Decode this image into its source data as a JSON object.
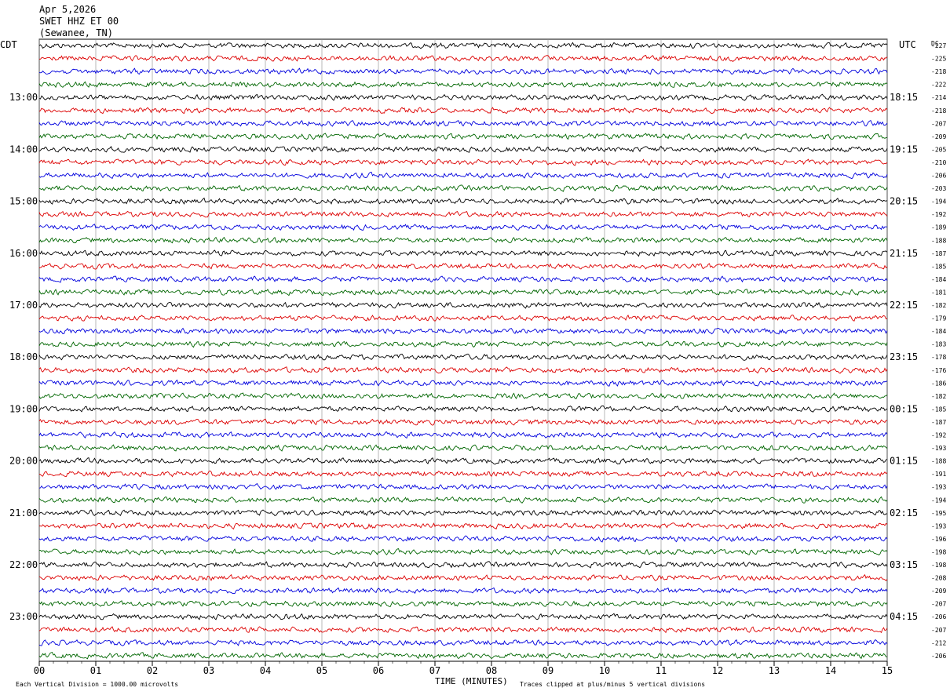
{
  "header": {
    "date": "Apr 5,2026",
    "station": "SWET HHZ ET 00",
    "location": "(Sewanee, TN)"
  },
  "chart_data": {
    "type": "line",
    "left_timezone": "CDT",
    "right_timezone": "UTC",
    "dc_label": "DC",
    "xlabel": "TIME (MINUTES)",
    "x_ticks": [
      "00",
      "01",
      "02",
      "03",
      "04",
      "05",
      "06",
      "07",
      "08",
      "09",
      "10",
      "11",
      "12",
      "13",
      "14",
      "15"
    ],
    "xlim": [
      0,
      15
    ],
    "grid": true,
    "trace_colors": [
      "#000000",
      "#dd0000",
      "#0000dd",
      "#006600"
    ],
    "left_hour_labels": [
      "13:00",
      "14:00",
      "15:00",
      "16:00",
      "17:00",
      "18:00",
      "19:00",
      "20:00",
      "21:00",
      "22:00",
      "23:00"
    ],
    "right_hour_labels": [
      "18:15",
      "19:15",
      "20:15",
      "21:15",
      "22:15",
      "23:15",
      "00:15",
      "01:15",
      "02:15",
      "03:15",
      "04:15"
    ],
    "dc_offsets": [
      -227,
      -225,
      -218,
      -222,
      -214,
      -218,
      -207,
      -209,
      -205,
      -210,
      -206,
      -203,
      -194,
      -192,
      -189,
      -188,
      -187,
      -185,
      -184,
      -181,
      -182,
      -179,
      -184,
      -183,
      -178,
      -176,
      -186,
      -182,
      -185,
      -187,
      -192,
      -193,
      -188,
      -191,
      -193,
      -194,
      -195,
      -193,
      -196,
      -198,
      -198,
      -208,
      -209,
      -207,
      -206,
      -207,
      -212,
      -206
    ],
    "footer_left": "Each Vertical Division = 1000.00 microvolts",
    "footer_right": "Traces clipped at plus/minus 5 vertical divisions"
  }
}
